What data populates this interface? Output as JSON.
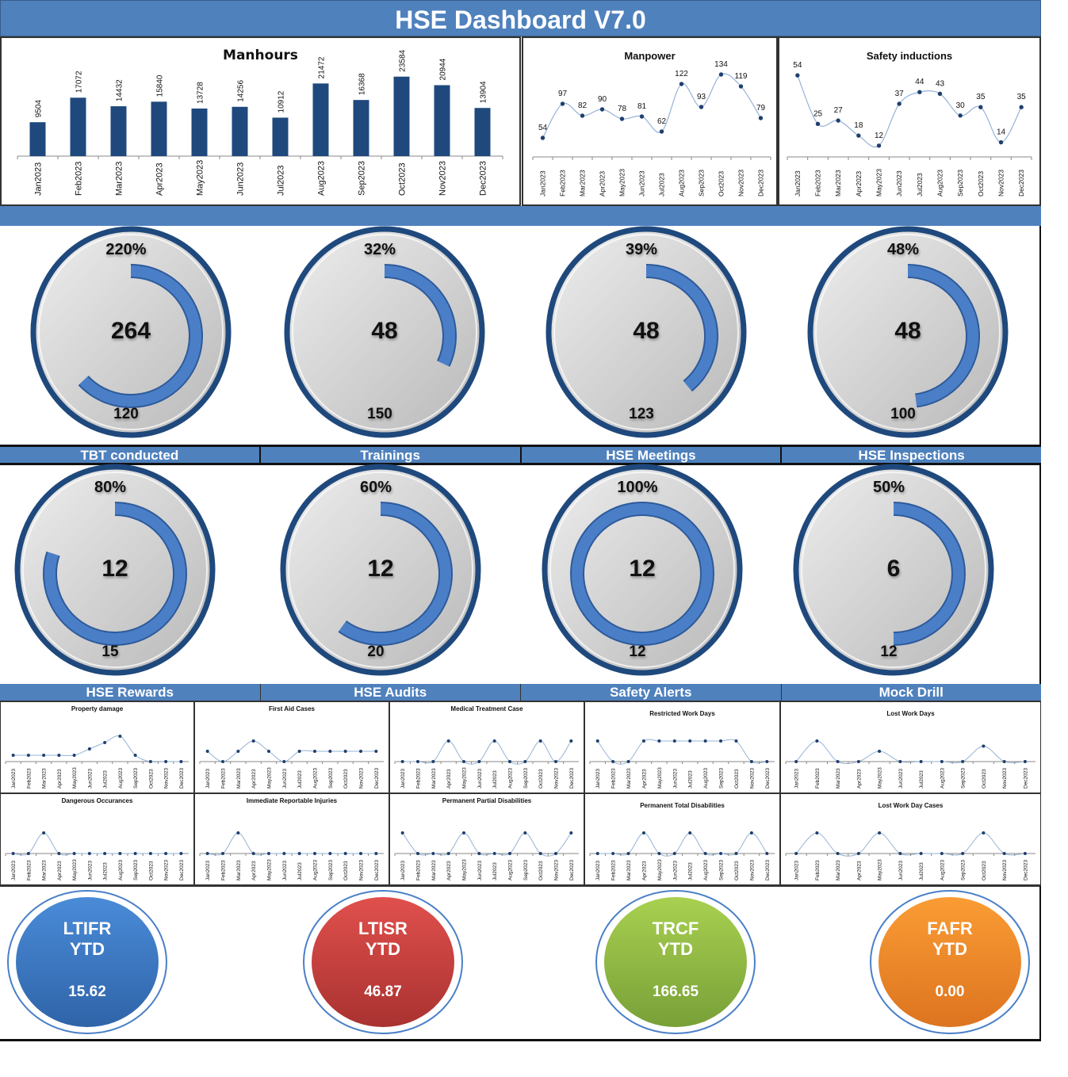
{
  "header": {
    "title": "HSE Dashboard V7.0"
  },
  "months": [
    "Jan2023",
    "Feb2023",
    "Mar2023",
    "Apr2023",
    "May2023",
    "Jun2023",
    "Jul2023",
    "Aug2023",
    "Sep2023",
    "Oct2023",
    "Nov2023",
    "Dec2023"
  ],
  "gauges_row1": [
    {
      "name": "tbt-conducted",
      "percent": "220%",
      "value": "264",
      "target": "120",
      "ratio": 2.2
    },
    {
      "name": "trainings",
      "percent": "32%",
      "value": "48",
      "target": "150",
      "ratio": 0.32
    },
    {
      "name": "hse-meetings",
      "percent": "39%",
      "value": "48",
      "target": "123",
      "ratio": 0.39
    },
    {
      "name": "hse-inspections",
      "percent": "48%",
      "value": "48",
      "target": "100",
      "ratio": 0.48
    }
  ],
  "labels_row1": [
    "TBT conducted",
    "Trainings",
    "HSE  Meetings",
    "HSE Inspections"
  ],
  "gauges_row2": [
    {
      "name": "hse-rewards",
      "percent": "80%",
      "value": "12",
      "target": "15",
      "ratio": 0.8
    },
    {
      "name": "hse-audits",
      "percent": "60%",
      "value": "12",
      "target": "20",
      "ratio": 0.6
    },
    {
      "name": "safety-alerts",
      "percent": "100%",
      "value": "12",
      "target": "12",
      "ratio": 1.0
    },
    {
      "name": "mock-drill",
      "percent": "50%",
      "value": "6",
      "target": "12",
      "ratio": 0.5
    }
  ],
  "labels_row2": [
    "HSE Rewards",
    "HSE Audits",
    "Safety Alerts",
    "Mock Drill"
  ],
  "kpis": [
    {
      "label1": "LTIFR",
      "label2": "YTD",
      "value": "15.62",
      "color_top": "#4a8bd8",
      "color_bottom": "#2f64a8"
    },
    {
      "label1": "LTISR",
      "label2": "YTD",
      "value": "46.87",
      "color_top": "#e0504d",
      "color_bottom": "#a93230"
    },
    {
      "label1": "TRCF",
      "label2": "YTD",
      "value": "166.65",
      "color_top": "#a8d050",
      "color_bottom": "#78a038"
    },
    {
      "label1": "FAFR",
      "label2": "YTD",
      "value": "0.00",
      "color_top": "#fa9c34",
      "color_bottom": "#dd7420"
    }
  ],
  "colors": {
    "band": "#4f81bd",
    "bar": "#1f497d",
    "line": "#95b3d7",
    "marker": "#1f3f6e",
    "gauge_ring": "#1f497d",
    "gauge_arc": "#4a7fc8"
  },
  "chart_data": [
    {
      "type": "bar",
      "title": "Manhours",
      "categories": [
        "Jan2023",
        "Feb2023",
        "Mar2023",
        "Apr2023",
        "May2023",
        "Jun2023",
        "Jul2023",
        "Aug2023",
        "Sep2023",
        "Oct2023",
        "Nov2023",
        "Dec2023"
      ],
      "values": [
        9504,
        17072,
        14432,
        15840,
        13728,
        14256,
        10912,
        21472,
        16368,
        23584,
        20944,
        13904
      ],
      "xlabel": "",
      "ylabel": "",
      "grid": false,
      "data_labels": true
    },
    {
      "type": "line",
      "title": "Manpower",
      "categories": [
        "Jan2023",
        "Feb2023",
        "Mar2023",
        "Apr2023",
        "May2023",
        "Jun2023",
        "Jul2023",
        "Aug2023",
        "Sep2023",
        "Oct2023",
        "Nov2023",
        "Dec2023"
      ],
      "values": [
        54,
        97,
        82,
        90,
        78,
        81,
        62,
        122,
        93,
        134,
        119,
        79
      ],
      "data_labels": true
    },
    {
      "type": "line",
      "title": "Safety inductions",
      "categories": [
        "Jan2023",
        "Feb2023",
        "Mar2023",
        "Apr2023",
        "May2023",
        "Jun2023",
        "Jul2023",
        "Aug2023",
        "Sep2023",
        "Oct2023",
        "Nov2023",
        "Dec2023"
      ],
      "values": [
        54,
        25,
        27,
        18,
        12,
        37,
        44,
        43,
        30,
        35,
        14,
        35
      ],
      "data_labels": true
    },
    {
      "type": "line",
      "title": "Property damage",
      "values": [
        1,
        1,
        1,
        1,
        1,
        2,
        3,
        4,
        1,
        0,
        0,
        0
      ]
    },
    {
      "type": "line",
      "title": "First Aid Cases",
      "values": [
        1,
        0,
        1,
        2,
        1,
        0,
        1,
        1,
        1,
        1,
        1,
        1
      ]
    },
    {
      "type": "line",
      "title": "Medical Treatment Case",
      "values": [
        0,
        0,
        0,
        1,
        0,
        0,
        1,
        0,
        0,
        1,
        0,
        1
      ]
    },
    {
      "type": "line",
      "title": "Restricted Work Days",
      "values": [
        1,
        0,
        0,
        1,
        1,
        1,
        1,
        1,
        1,
        1,
        0,
        0
      ]
    },
    {
      "type": "line",
      "title": "Lost Work Days",
      "values": [
        0,
        2,
        0,
        0,
        1,
        0,
        0,
        0,
        0,
        1.5,
        0,
        0
      ]
    },
    {
      "type": "line",
      "title": "Dangerous Occurances",
      "values": [
        0,
        0,
        1,
        0,
        0,
        0,
        0,
        0,
        0,
        0,
        0,
        0
      ]
    },
    {
      "type": "line",
      "title": "Immediate Reportable Injuries",
      "values": [
        0,
        0,
        1,
        0,
        0,
        0,
        0,
        0,
        0,
        0,
        0,
        0
      ]
    },
    {
      "type": "line",
      "title": "Permanent Partial Disabilities",
      "values": [
        1,
        0,
        0,
        0,
        1,
        0,
        0,
        0,
        1,
        0,
        0,
        1
      ]
    },
    {
      "type": "line",
      "title": "Permanent Total Disabilities",
      "values": [
        0,
        0,
        0,
        1,
        0,
        0,
        1,
        0,
        0,
        0,
        1,
        0
      ]
    },
    {
      "type": "line",
      "title": "Lost Work Day Cases",
      "values": [
        0,
        1,
        0,
        0,
        1,
        0,
        0,
        0,
        0,
        1,
        0,
        0
      ]
    }
  ]
}
